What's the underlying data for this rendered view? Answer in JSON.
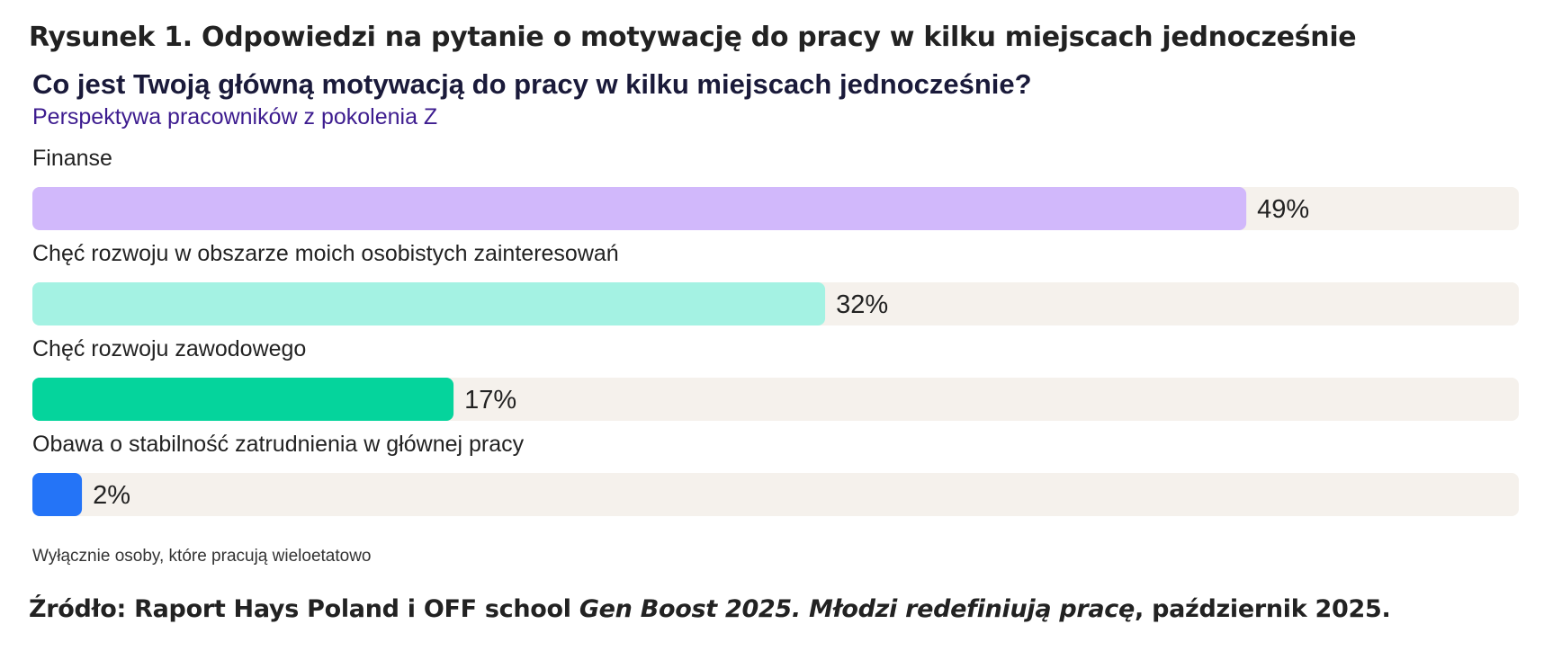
{
  "figure": {
    "caption": "Rysunek 1. Odpowiedzi na pytanie o motywację do pracy w kilku miejscach jednocześnie"
  },
  "chart_data": {
    "type": "bar",
    "orientation": "horizontal",
    "title": "Co jest Twoją główną motywacją do pracy w kilku miejscach jednocześnie?",
    "subtitle": "Perspektywa pracowników z pokolenia Z",
    "categories": [
      "Finanse",
      "Chęć rozwoju w obszarze moich osobistych zainteresowań",
      "Chęć rozwoju zawodowego",
      "Obawa o stabilność zatrudnienia w głównej pracy"
    ],
    "values": [
      49,
      32,
      17,
      2
    ],
    "value_labels": [
      "49%",
      "32%",
      "17%",
      "2%"
    ],
    "unit": "%",
    "xlim": [
      0,
      60
    ],
    "grid": false,
    "colors": [
      "#d1b8fb",
      "#a4f2e3",
      "#05d49c",
      "#2474f7"
    ],
    "track_color": "#f5f1ec"
  },
  "note": "Wyłącznie osoby, które pracują wieloetatowo",
  "source": {
    "prefix": "Źródło: Raport Hays Poland i OFF school ",
    "title": "Gen Boost 2025. Młodzi redefiniują pracę",
    "suffix": ", październik 2025."
  }
}
